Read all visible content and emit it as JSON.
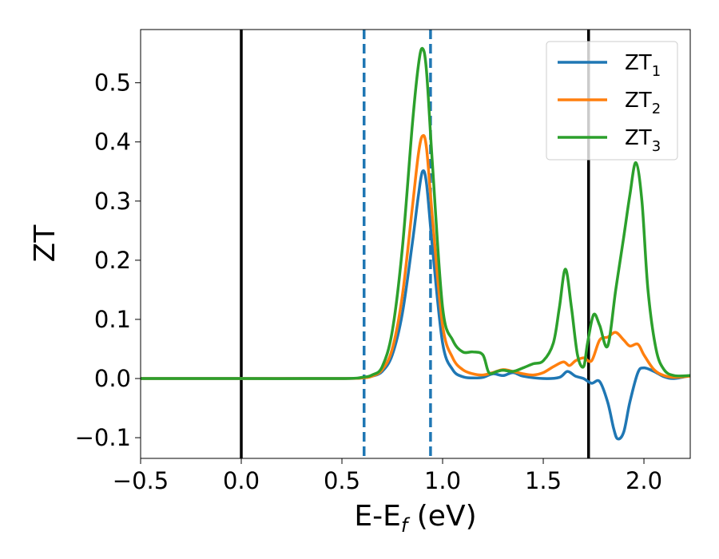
{
  "chart_data": {
    "type": "line",
    "title": "",
    "xlabel": "E-E",
    "xlabel_subscript": "f",
    "xlabel_unit": " (eV)",
    "ylabel": "ZT",
    "xlim": [
      -0.5,
      2.23
    ],
    "ylim": [
      -0.135,
      0.59
    ],
    "grid": false,
    "legend_position": "top-right",
    "xticks": [
      -0.5,
      0.0,
      0.5,
      1.0,
      1.5,
      2.0
    ],
    "xtick_labels": [
      "−0.5",
      "0.0",
      "0.5",
      "1.0",
      "1.5",
      "2.0"
    ],
    "yticks": [
      -0.1,
      0.0,
      0.1,
      0.2,
      0.3,
      0.4,
      0.5
    ],
    "ytick_labels": [
      "−0.1",
      "0.0",
      "0.1",
      "0.2",
      "0.3",
      "0.4",
      "0.5"
    ],
    "vertical_lines": [
      {
        "x": 0.0,
        "style": "solid",
        "color": "#000000"
      },
      {
        "x": 0.61,
        "style": "dashed",
        "color": "#1f77b4"
      },
      {
        "x": 0.94,
        "style": "dashed",
        "color": "#1f77b4"
      },
      {
        "x": 1.725,
        "style": "solid",
        "color": "#000000"
      }
    ],
    "series": [
      {
        "name": "ZT",
        "subscript": "1",
        "color": "#1f77b4",
        "x": [
          -0.5,
          0.0,
          0.5,
          0.6,
          0.65,
          0.7,
          0.75,
          0.8,
          0.85,
          0.88,
          0.9,
          0.92,
          0.95,
          1.0,
          1.05,
          1.1,
          1.15,
          1.2,
          1.25,
          1.3,
          1.35,
          1.4,
          1.5,
          1.58,
          1.62,
          1.66,
          1.7,
          1.74,
          1.78,
          1.82,
          1.85,
          1.87,
          1.9,
          1.93,
          1.97,
          2.0,
          2.05,
          2.1,
          2.15,
          2.23
        ],
        "y": [
          0.0,
          0.0,
          0.0,
          0.001,
          0.004,
          0.012,
          0.04,
          0.11,
          0.23,
          0.31,
          0.35,
          0.33,
          0.22,
          0.06,
          0.015,
          0.003,
          0.001,
          0.002,
          0.008,
          0.005,
          0.01,
          0.004,
          0.0,
          0.002,
          0.012,
          0.004,
          0.0,
          -0.008,
          -0.005,
          -0.04,
          -0.085,
          -0.102,
          -0.09,
          -0.04,
          0.01,
          0.018,
          0.012,
          0.003,
          0.0,
          0.005
        ]
      },
      {
        "name": "ZT",
        "subscript": "2",
        "color": "#ff7f0e",
        "x": [
          -0.5,
          0.0,
          0.5,
          0.6,
          0.65,
          0.7,
          0.75,
          0.8,
          0.85,
          0.88,
          0.9,
          0.92,
          0.95,
          1.0,
          1.05,
          1.1,
          1.15,
          1.2,
          1.25,
          1.3,
          1.35,
          1.4,
          1.45,
          1.5,
          1.55,
          1.6,
          1.63,
          1.66,
          1.7,
          1.74,
          1.78,
          1.82,
          1.86,
          1.9,
          1.93,
          1.97,
          2.0,
          2.05,
          2.1,
          2.15,
          2.23
        ],
        "y": [
          0.0,
          0.0,
          0.0,
          0.001,
          0.004,
          0.015,
          0.05,
          0.14,
          0.29,
          0.38,
          0.41,
          0.39,
          0.27,
          0.09,
          0.035,
          0.015,
          0.008,
          0.006,
          0.01,
          0.015,
          0.012,
          0.008,
          0.006,
          0.01,
          0.02,
          0.028,
          0.022,
          0.03,
          0.035,
          0.03,
          0.065,
          0.07,
          0.078,
          0.065,
          0.055,
          0.058,
          0.04,
          0.015,
          0.005,
          0.002,
          0.004
        ]
      },
      {
        "name": "ZT",
        "subscript": "3",
        "color": "#2ca02c",
        "x": [
          -0.5,
          0.0,
          0.5,
          0.6,
          0.65,
          0.7,
          0.75,
          0.8,
          0.85,
          0.88,
          0.9,
          0.92,
          0.95,
          1.0,
          1.05,
          1.1,
          1.15,
          1.2,
          1.23,
          1.27,
          1.3,
          1.35,
          1.4,
          1.45,
          1.5,
          1.55,
          1.58,
          1.61,
          1.64,
          1.67,
          1.7,
          1.72,
          1.75,
          1.78,
          1.82,
          1.86,
          1.9,
          1.93,
          1.96,
          1.99,
          2.02,
          2.06,
          2.1,
          2.15,
          2.23
        ],
        "y": [
          0.0,
          0.0,
          0.0,
          0.002,
          0.006,
          0.02,
          0.08,
          0.22,
          0.43,
          0.53,
          0.558,
          0.52,
          0.36,
          0.12,
          0.065,
          0.045,
          0.045,
          0.04,
          0.01,
          0.012,
          0.014,
          0.012,
          0.018,
          0.025,
          0.03,
          0.06,
          0.12,
          0.185,
          0.12,
          0.04,
          0.02,
          0.06,
          0.108,
          0.09,
          0.055,
          0.15,
          0.24,
          0.31,
          0.365,
          0.3,
          0.15,
          0.05,
          0.015,
          0.005,
          0.005
        ]
      }
    ]
  }
}
